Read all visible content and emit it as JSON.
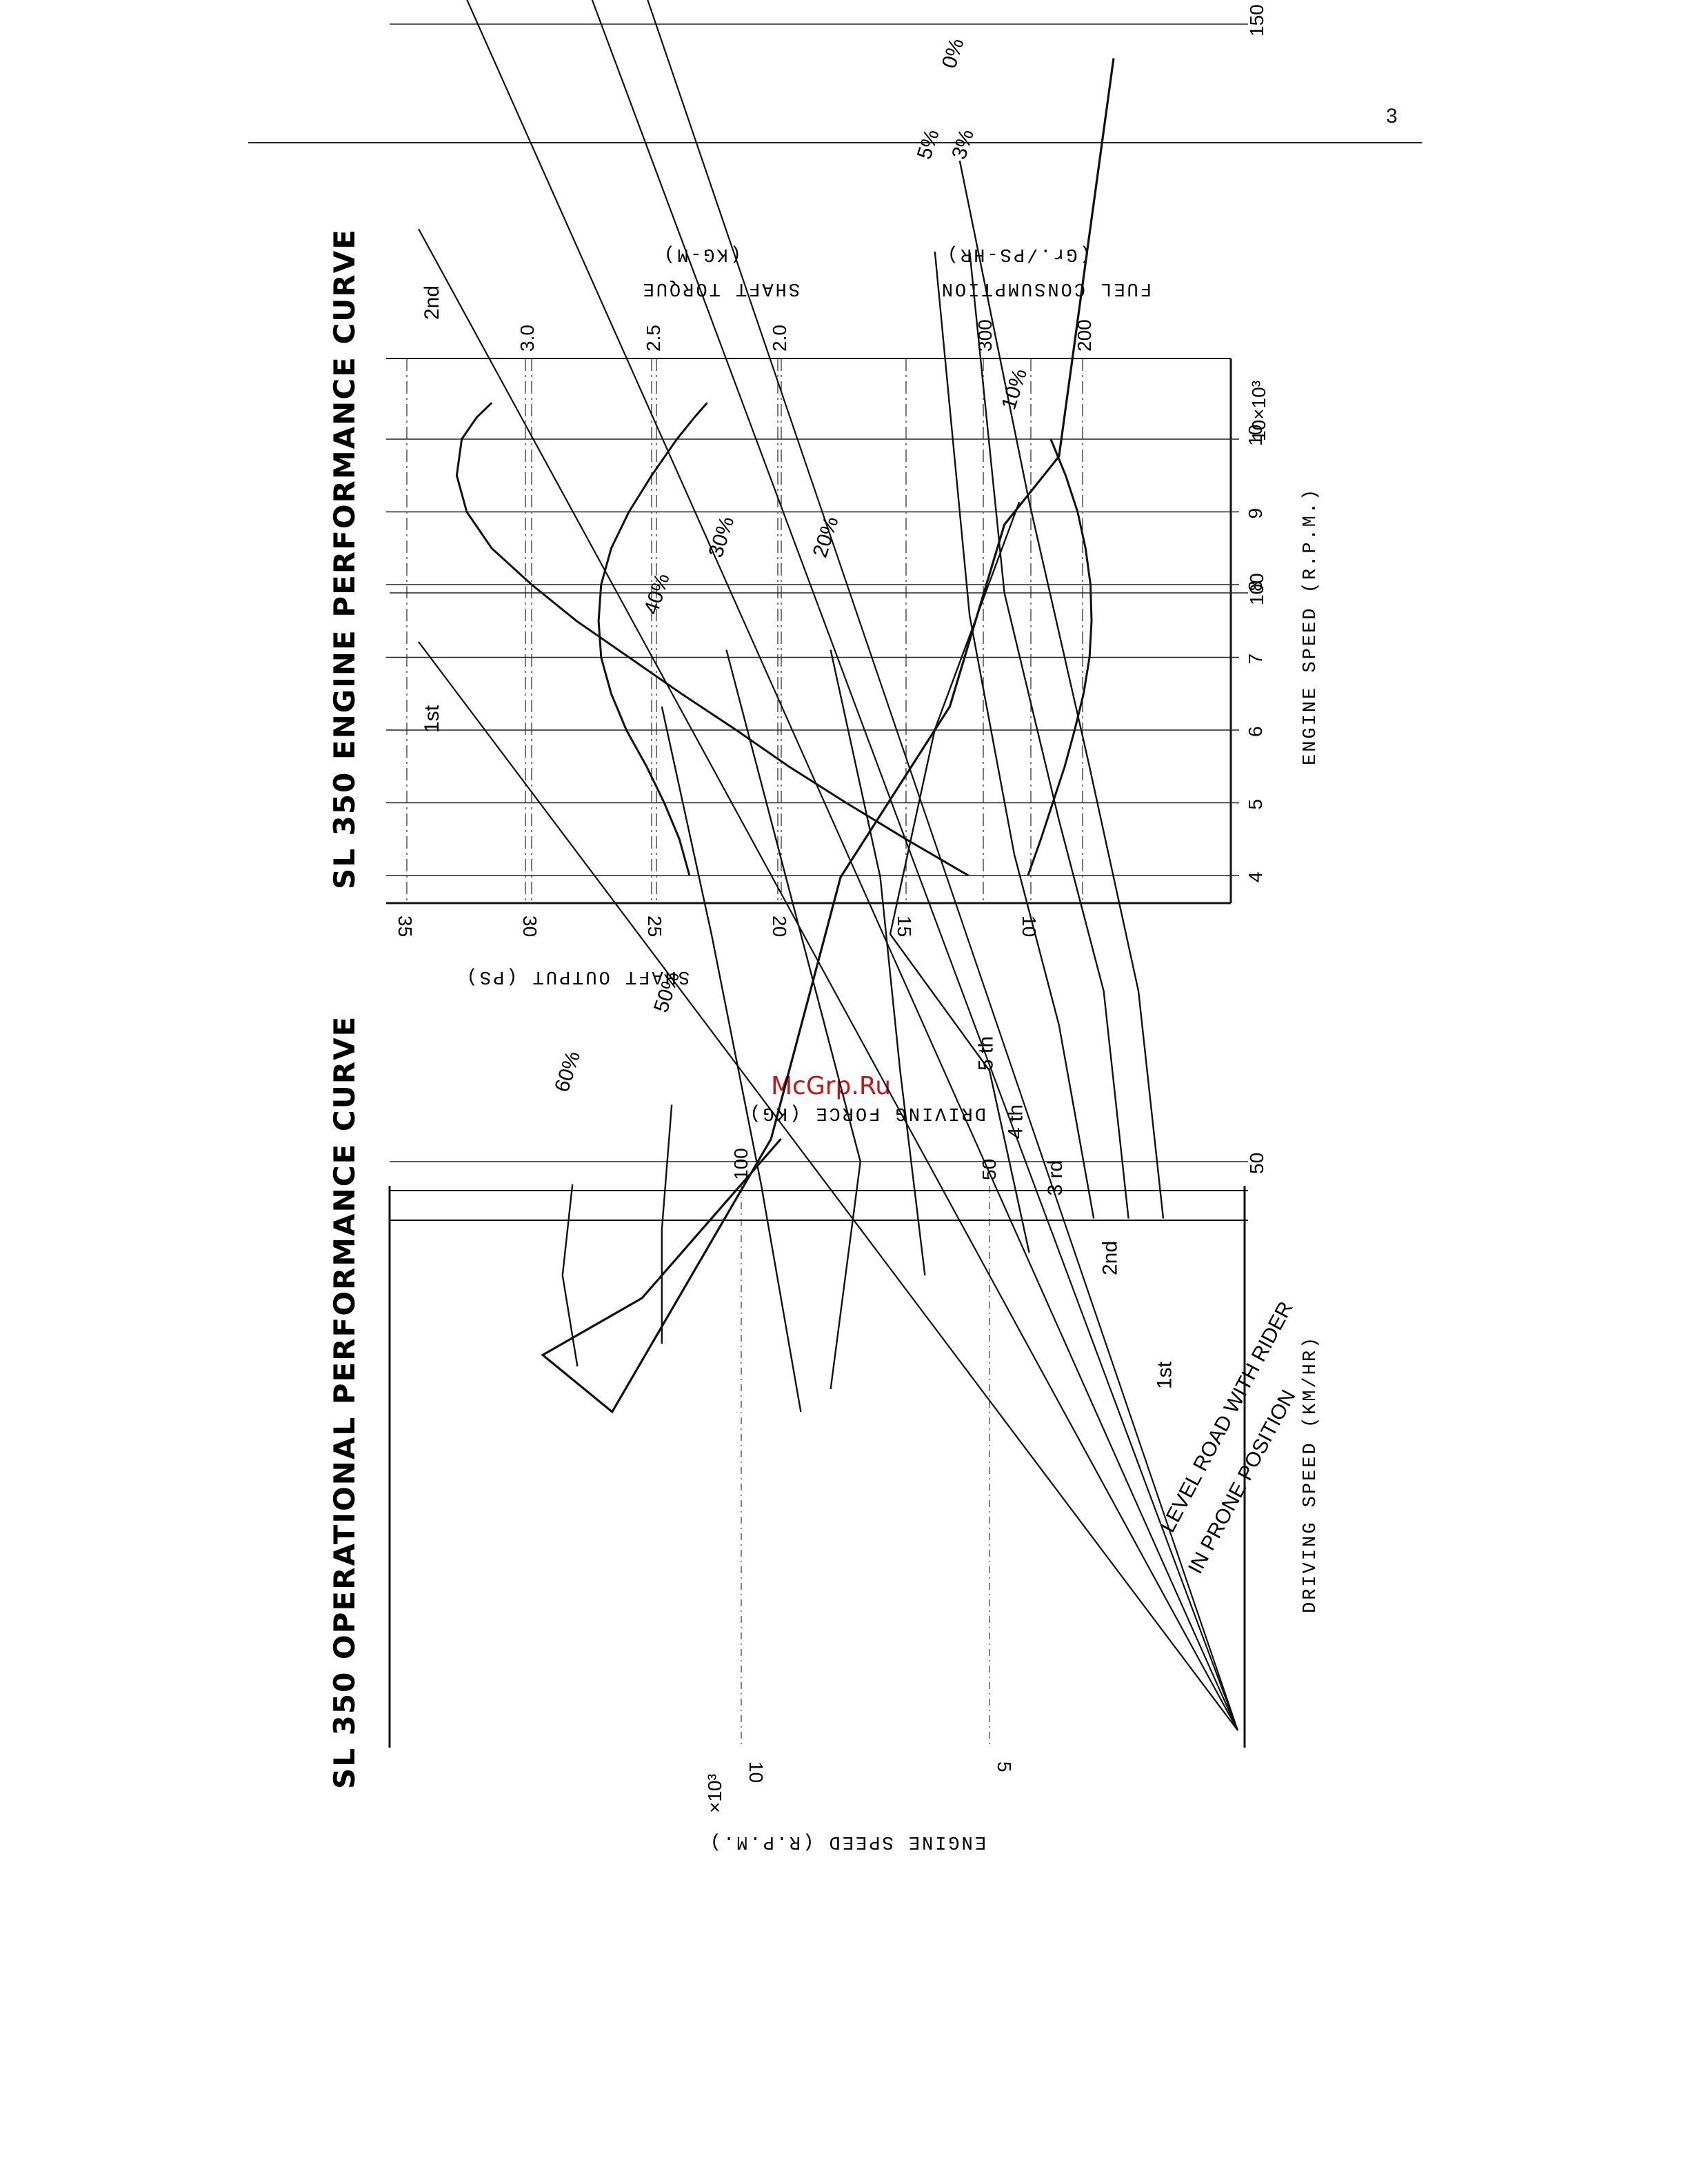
{
  "page_number": "3",
  "watermark": "McGrp.Ru",
  "chart_data": [
    {
      "type": "line",
      "title": "SL 350 ENGINE PERFORMANCE CURVE",
      "xlabel": "ENGINE SPEED (R.P.M.)",
      "x_unit_label": "10×10³",
      "x_ticks": [
        4,
        5,
        6,
        7,
        8,
        9,
        10
      ],
      "xlim": [
        4,
        10.4
      ],
      "grid": true,
      "left_axis": {
        "label": "SHAFT OUTPUT (PS)",
        "ticks": [
          35,
          30,
          25,
          20,
          15,
          10
        ]
      },
      "torque_axis": {
        "label": "SHAFT TORQUE",
        "unit": "(KG-M)",
        "ticks": [
          "3.0",
          "2.5",
          "2.0"
        ]
      },
      "fuel_axis": {
        "label": "FUEL CONSUMPTION",
        "unit": "(Gr./PS-HR)",
        "ticks": [
          "300",
          "200"
        ]
      },
      "series": [
        {
          "id": "output",
          "x": [
            4.0,
            4.5,
            5.0,
            5.5,
            6.0,
            6.5,
            7.0,
            7.5,
            8.0,
            8.5,
            9.0,
            9.5,
            10.0,
            10.3,
            10.5
          ],
          "y": [
            12.5,
            15.0,
            17.4,
            19.7,
            21.8,
            24.0,
            26.1,
            28.2,
            30.0,
            31.6,
            32.6,
            33.0,
            32.8,
            32.2,
            31.6
          ]
        },
        {
          "id": "torque",
          "x": [
            4.0,
            4.5,
            5.0,
            5.5,
            6.0,
            6.5,
            7.0,
            7.5,
            8.0,
            8.5,
            9.0,
            9.5,
            10.0,
            10.3,
            10.5
          ],
          "y": [
            2.35,
            2.39,
            2.45,
            2.52,
            2.6,
            2.66,
            2.7,
            2.71,
            2.7,
            2.66,
            2.59,
            2.5,
            2.4,
            2.33,
            2.28
          ]
        },
        {
          "id": "fuel_consumption",
          "x": [
            4.0,
            4.5,
            5.0,
            5.5,
            6.0,
            6.5,
            7.0,
            7.5,
            8.0,
            8.5,
            9.0,
            9.5,
            10.0
          ],
          "y": [
            255,
            242,
            230,
            218,
            208,
            199,
            193,
            191,
            192,
            197,
            205,
            217,
            232
          ]
        }
      ]
    },
    {
      "type": "line",
      "title": "SL 350 OPERATIONAL PERFORMANCE CURVE",
      "xlabel": "DRIVING SPEED (KM/HR)",
      "x_ticks": [
        50,
        100,
        150
      ],
      "xlim": [
        0,
        155
      ],
      "ylabel": "ENGINE SPEED (R.P.M.)",
      "y_unit_label": "×10³",
      "y_ticks": [
        5,
        10
      ],
      "ylim": [
        0,
        17
      ],
      "force_axis": {
        "label": "DRIVING FORCE (KG)",
        "ticks": [
          "100",
          "50"
        ]
      },
      "grid": true,
      "gear_lines": [
        {
          "name": "1st",
          "speed_at_10k_rpm": 58
        },
        {
          "name": "2nd",
          "speed_at_10k_rpm": 80
        },
        {
          "name": "3rd",
          "speed_at_10k_rpm": 98
        },
        {
          "name": "4th",
          "speed_at_10k_rpm": 117
        },
        {
          "name": "5th",
          "speed_at_10k_rpm": 128
        }
      ],
      "gear_labels": [
        "1st",
        "2nd",
        "3rd",
        "4th",
        "5th"
      ],
      "gear_labels_low": [
        "1st",
        "2nd",
        "3 rd",
        "4 th",
        "5 th"
      ],
      "grade_curves": [
        "60%",
        "50%",
        "40%",
        "30%",
        "20%",
        "10%",
        "5%",
        "3%",
        "0%"
      ],
      "level_road_note": [
        "LEVEL ROAD WITH RIDER",
        "IN PRONE POSITION"
      ]
    }
  ]
}
